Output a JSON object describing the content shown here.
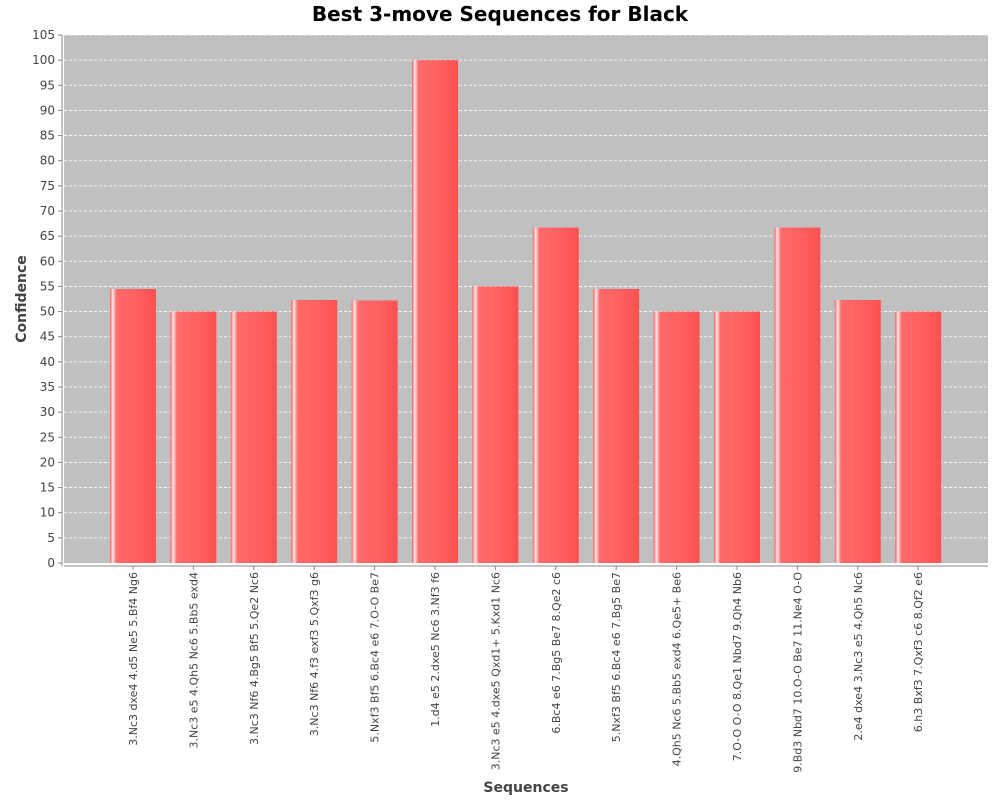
{
  "chart_data": {
    "type": "bar",
    "title": "Best 3-move Sequences for Black",
    "xlabel": "Sequences",
    "ylabel": "Confidence",
    "ylim": [
      0,
      105
    ],
    "ytick_step": 5,
    "grid": true,
    "bar_color": "#ff5c5c",
    "plot_background": "#c0c0c0",
    "categories": [
      "3.Nc3 dxe4 4.d5 Ne5 5.Bf4 Ng6",
      "3.Nc3 e5 4.Qh5 Nc6 5.Bb5 exd4",
      "3.Nc3 Nf6 4.Bg5 Bf5 5.Qe2 Nc6",
      "3.Nc3 Nf6 4.f3 exf3 5.Qxf3 g6",
      "5.Nxf3 Bf5 6.Bc4 e6 7.O-O Be7",
      "1.d4 e5 2.dxe5 Nc6 3.Nf3 f6",
      "3.Nc3 e5 4.dxe5 Qxd1+ 5.Kxd1 Nc6",
      "6.Bc4 e6 7.Bg5 Be7 8.Qe2 c6",
      "5.Nxf3 Bf5 6.Bc4 e6 7.Bg5 Be7",
      "4.Qh5 Nc6 5.Bb5 exd4 6.Qe5+ Be6",
      "7.O-O O-O 8.Qe1 Nbd7 9.Qh4 Nb6",
      "9.Bd3 Nbd7 10.O-O Be7 11.Ne4 O-O",
      "2.e4 dxe4 3.Nc3 e5 4.Qh5 Nc6",
      "6.h3 Bxf3 7.Qxf3 c6 8.Qf2 e6"
    ],
    "values": [
      54.5,
      50,
      50,
      52.3,
      52.2,
      100,
      55,
      66.7,
      54.5,
      50,
      50,
      66.7,
      52.3,
      50
    ]
  }
}
